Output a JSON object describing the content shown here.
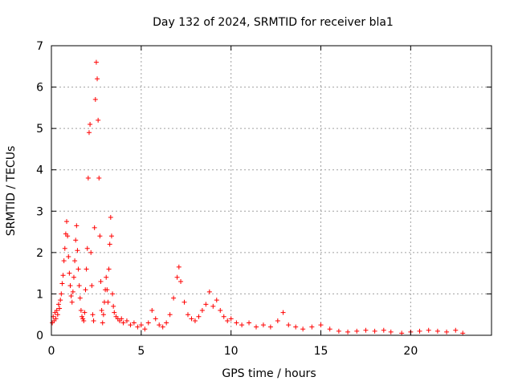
{
  "chart_data": {
    "type": "scatter",
    "title": "Day 132 of 2024, SRMTID for receiver bla1",
    "xlabel": "GPS time / hours",
    "ylabel": "SRMTID / TECUs",
    "xlim": [
      0,
      24.5
    ],
    "ylim": [
      0,
      7
    ],
    "xticks": [
      0,
      5,
      10,
      15,
      20
    ],
    "yticks": [
      0,
      1,
      2,
      3,
      4,
      5,
      6,
      7
    ],
    "grid": true,
    "marker": "+",
    "marker_color": "#ff0000",
    "grid_color": "#a0a0a0",
    "series": [
      {
        "name": "SRMTID",
        "points": [
          [
            0.05,
            0.3
          ],
          [
            0.1,
            0.45
          ],
          [
            0.15,
            0.35
          ],
          [
            0.2,
            0.55
          ],
          [
            0.25,
            0.4
          ],
          [
            0.3,
            0.6
          ],
          [
            0.35,
            0.5
          ],
          [
            0.4,
            0.75
          ],
          [
            0.45,
            0.65
          ],
          [
            0.5,
            0.85
          ],
          [
            0.55,
            1.0
          ],
          [
            0.6,
            1.25
          ],
          [
            0.65,
            1.45
          ],
          [
            0.7,
            1.8
          ],
          [
            0.75,
            2.1
          ],
          [
            0.8,
            2.45
          ],
          [
            0.85,
            2.75
          ],
          [
            0.9,
            2.4
          ],
          [
            0.95,
            1.9
          ],
          [
            1.0,
            1.5
          ],
          [
            1.05,
            1.2
          ],
          [
            1.1,
            0.95
          ],
          [
            1.15,
            0.8
          ],
          [
            1.2,
            1.05
          ],
          [
            1.25,
            1.4
          ],
          [
            1.3,
            1.8
          ],
          [
            1.35,
            2.3
          ],
          [
            1.4,
            2.65
          ],
          [
            1.45,
            2.05
          ],
          [
            1.5,
            1.6
          ],
          [
            1.55,
            1.2
          ],
          [
            1.6,
            0.9
          ],
          [
            1.65,
            0.6
          ],
          [
            1.7,
            0.45
          ],
          [
            1.75,
            0.4
          ],
          [
            1.8,
            0.35
          ],
          [
            1.85,
            0.55
          ],
          [
            1.9,
            1.1
          ],
          [
            1.95,
            1.6
          ],
          [
            2.0,
            2.1
          ],
          [
            2.05,
            3.8
          ],
          [
            2.1,
            4.9
          ],
          [
            2.15,
            5.1
          ],
          [
            2.2,
            2.0
          ],
          [
            2.25,
            1.2
          ],
          [
            2.3,
            0.5
          ],
          [
            2.35,
            0.35
          ],
          [
            2.4,
            2.6
          ],
          [
            2.45,
            5.7
          ],
          [
            2.5,
            6.6
          ],
          [
            2.55,
            6.2
          ],
          [
            2.6,
            5.2
          ],
          [
            2.65,
            3.8
          ],
          [
            2.7,
            2.4
          ],
          [
            2.75,
            1.3
          ],
          [
            2.8,
            0.6
          ],
          [
            2.85,
            0.3
          ],
          [
            2.9,
            0.5
          ],
          [
            2.95,
            0.8
          ],
          [
            3.0,
            1.1
          ],
          [
            3.05,
            1.4
          ],
          [
            3.1,
            1.1
          ],
          [
            3.15,
            0.8
          ],
          [
            3.2,
            1.6
          ],
          [
            3.25,
            2.2
          ],
          [
            3.3,
            2.85
          ],
          [
            3.35,
            2.4
          ],
          [
            3.4,
            1.0
          ],
          [
            3.45,
            0.7
          ],
          [
            3.5,
            0.55
          ],
          [
            3.6,
            0.45
          ],
          [
            3.7,
            0.4
          ],
          [
            3.8,
            0.35
          ],
          [
            3.9,
            0.4
          ],
          [
            4.0,
            0.3
          ],
          [
            4.2,
            0.35
          ],
          [
            4.4,
            0.25
          ],
          [
            4.6,
            0.3
          ],
          [
            4.8,
            0.2
          ],
          [
            5.0,
            0.25
          ],
          [
            5.2,
            0.15
          ],
          [
            5.4,
            0.3
          ],
          [
            5.6,
            0.6
          ],
          [
            5.8,
            0.4
          ],
          [
            6.0,
            0.25
          ],
          [
            6.2,
            0.2
          ],
          [
            6.4,
            0.3
          ],
          [
            6.6,
            0.5
          ],
          [
            6.8,
            0.9
          ],
          [
            7.0,
            1.4
          ],
          [
            7.1,
            1.65
          ],
          [
            7.2,
            1.3
          ],
          [
            7.4,
            0.8
          ],
          [
            7.6,
            0.5
          ],
          [
            7.8,
            0.4
          ],
          [
            8.0,
            0.35
          ],
          [
            8.2,
            0.45
          ],
          [
            8.4,
            0.6
          ],
          [
            8.6,
            0.75
          ],
          [
            8.8,
            1.05
          ],
          [
            9.0,
            0.7
          ],
          [
            9.2,
            0.85
          ],
          [
            9.4,
            0.6
          ],
          [
            9.6,
            0.45
          ],
          [
            9.8,
            0.35
          ],
          [
            10.0,
            0.4
          ],
          [
            10.3,
            0.3
          ],
          [
            10.6,
            0.25
          ],
          [
            11.0,
            0.3
          ],
          [
            11.4,
            0.2
          ],
          [
            11.8,
            0.25
          ],
          [
            12.2,
            0.2
          ],
          [
            12.6,
            0.35
          ],
          [
            12.9,
            0.55
          ],
          [
            13.2,
            0.25
          ],
          [
            13.6,
            0.2
          ],
          [
            14.0,
            0.15
          ],
          [
            14.5,
            0.2
          ],
          [
            15.0,
            0.25
          ],
          [
            15.5,
            0.15
          ],
          [
            16.0,
            0.1
          ],
          [
            16.5,
            0.08
          ],
          [
            17.0,
            0.1
          ],
          [
            17.5,
            0.12
          ],
          [
            18.0,
            0.1
          ],
          [
            18.5,
            0.12
          ],
          [
            18.9,
            0.08
          ],
          [
            19.5,
            0.05
          ],
          [
            20.0,
            0.08
          ],
          [
            20.5,
            0.1
          ],
          [
            21.0,
            0.12
          ],
          [
            21.5,
            0.1
          ],
          [
            22.0,
            0.08
          ],
          [
            22.5,
            0.12
          ],
          [
            22.9,
            0.05
          ]
        ]
      }
    ]
  }
}
